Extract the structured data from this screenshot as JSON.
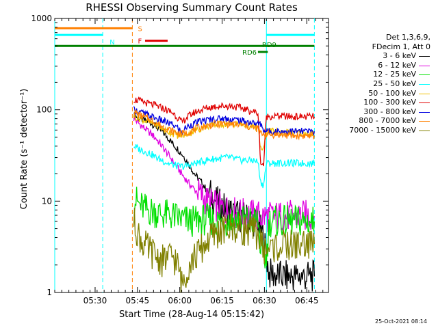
{
  "chart_data": {
    "type": "line",
    "title": "RHESSI Observing Summary Count Rates",
    "xlabel": "Start Time (28-Aug-14 05:15:42)",
    "ylabel": "Count Rate (s⁻¹ detector⁻¹)",
    "xlim_minutes": [
      0,
      97
    ],
    "ylim": [
      1,
      1000
    ],
    "yscale": "log",
    "x_ticks": [
      {
        "label": "05:30",
        "t": 14.3
      },
      {
        "label": "05:45",
        "t": 29.3
      },
      {
        "label": "06:00",
        "t": 44.3
      },
      {
        "label": "06:15",
        "t": 59.3
      },
      {
        "label": "06:30",
        "t": 74.3
      },
      {
        "label": "06:45",
        "t": 89.3
      }
    ],
    "y_ticks": [
      {
        "label": "1",
        "v": 1
      },
      {
        "label": "10",
        "v": 10
      },
      {
        "label": "100",
        "v": 100
      },
      {
        "label": "1000",
        "v": 1000
      }
    ],
    "legend_header": [
      "Det 1,3,6,9,",
      "FDecim 1, Att 0"
    ],
    "series": [
      {
        "name": "3 - 6 keV",
        "color": "#000000",
        "points": [
          [
            28,
            88
          ],
          [
            30,
            80
          ],
          [
            32,
            76
          ],
          [
            34,
            72
          ],
          [
            36,
            65
          ],
          [
            38,
            58
          ],
          [
            40,
            50
          ],
          [
            42,
            42
          ],
          [
            44,
            36
          ],
          [
            46,
            30
          ],
          [
            48,
            24
          ],
          [
            50,
            19
          ],
          [
            52,
            16
          ],
          [
            54,
            13
          ],
          [
            56,
            11
          ],
          [
            58,
            9.5
          ],
          [
            60,
            8.5
          ],
          [
            62,
            7.8
          ],
          [
            64,
            7.2
          ],
          [
            66,
            6.8
          ],
          [
            68,
            6.5
          ],
          [
            70,
            6.2
          ],
          [
            72,
            5.8
          ],
          [
            74,
            4.0
          ],
          [
            76,
            1.6
          ],
          [
            80,
            1.5
          ],
          [
            85,
            1.5
          ],
          [
            90,
            1.5
          ],
          [
            92,
            1.5
          ]
        ]
      },
      {
        "name": "6 - 12 keV",
        "color": "#e000e0",
        "points": [
          [
            28,
            80
          ],
          [
            30,
            70
          ],
          [
            32,
            62
          ],
          [
            34,
            55
          ],
          [
            36,
            48
          ],
          [
            38,
            40
          ],
          [
            40,
            33
          ],
          [
            42,
            27
          ],
          [
            44,
            22
          ],
          [
            46,
            18
          ],
          [
            48,
            15
          ],
          [
            50,
            13
          ],
          [
            52,
            11.5
          ],
          [
            54,
            10
          ],
          [
            56,
            9.2
          ],
          [
            58,
            8.6
          ],
          [
            60,
            8.2
          ],
          [
            62,
            7.8
          ],
          [
            64,
            7.5
          ],
          [
            66,
            7.3
          ],
          [
            68,
            7.1
          ],
          [
            70,
            7.0
          ],
          [
            72,
            6.9
          ],
          [
            74,
            6.8
          ],
          [
            76,
            6.8
          ],
          [
            80,
            6.8
          ],
          [
            85,
            6.9
          ],
          [
            90,
            6.9
          ],
          [
            92,
            6.9
          ]
        ]
      },
      {
        "name": "12 - 25 keV",
        "color": "#00e000",
        "points": [
          [
            28,
            11
          ],
          [
            30,
            9
          ],
          [
            32,
            8.2
          ],
          [
            34,
            7.8
          ],
          [
            36,
            7.5
          ],
          [
            38,
            7.2
          ],
          [
            40,
            7.0
          ],
          [
            42,
            6.8
          ],
          [
            44,
            6.5
          ],
          [
            46,
            6.2
          ],
          [
            48,
            6.0
          ],
          [
            50,
            6.0
          ],
          [
            52,
            6.2
          ],
          [
            54,
            6.3
          ],
          [
            56,
            6.2
          ],
          [
            58,
            6.0
          ],
          [
            60,
            6.0
          ],
          [
            62,
            6.2
          ],
          [
            64,
            6.3
          ],
          [
            66,
            6.2
          ],
          [
            68,
            6.1
          ],
          [
            70,
            6.1
          ],
          [
            72,
            6.0
          ],
          [
            73,
            3.0
          ],
          [
            74,
            2.4
          ],
          [
            75,
            2.3
          ],
          [
            76,
            6.0
          ],
          [
            80,
            6.0
          ],
          [
            85,
            6.0
          ],
          [
            90,
            6.0
          ],
          [
            92,
            6.0
          ]
        ]
      },
      {
        "name": "25 - 50 keV",
        "color": "#00ffff",
        "points": [
          [
            28,
            40
          ],
          [
            30,
            37
          ],
          [
            32,
            35
          ],
          [
            34,
            33
          ],
          [
            36,
            30
          ],
          [
            38,
            28
          ],
          [
            40,
            26
          ],
          [
            42,
            25
          ],
          [
            44,
            24
          ],
          [
            46,
            24
          ],
          [
            48,
            25
          ],
          [
            50,
            26
          ],
          [
            52,
            27
          ],
          [
            54,
            28
          ],
          [
            56,
            29
          ],
          [
            58,
            29
          ],
          [
            60,
            30
          ],
          [
            62,
            30
          ],
          [
            64,
            29
          ],
          [
            66,
            28
          ],
          [
            68,
            28
          ],
          [
            70,
            28
          ],
          [
            72,
            27
          ],
          [
            73,
            16
          ],
          [
            74,
            15
          ],
          [
            75,
            26
          ],
          [
            80,
            26
          ],
          [
            85,
            26
          ],
          [
            90,
            26
          ],
          [
            92,
            26
          ]
        ]
      },
      {
        "name": "50 - 100 keV",
        "color": "#f0c000",
        "points": [
          [
            28,
            85
          ],
          [
            30,
            80
          ],
          [
            32,
            76
          ],
          [
            34,
            72
          ],
          [
            36,
            68
          ],
          [
            38,
            62
          ],
          [
            40,
            58
          ],
          [
            42,
            55
          ],
          [
            44,
            52
          ],
          [
            46,
            53
          ],
          [
            48,
            56
          ],
          [
            50,
            60
          ],
          [
            52,
            63
          ],
          [
            54,
            66
          ],
          [
            56,
            68
          ],
          [
            58,
            69
          ],
          [
            60,
            70
          ],
          [
            62,
            70
          ],
          [
            64,
            70
          ],
          [
            66,
            69
          ],
          [
            68,
            68
          ],
          [
            70,
            66
          ],
          [
            72,
            63
          ],
          [
            73,
            38
          ],
          [
            74,
            36
          ],
          [
            75,
            58
          ],
          [
            80,
            57
          ],
          [
            85,
            56
          ],
          [
            90,
            55
          ],
          [
            92,
            55
          ]
        ]
      },
      {
        "name": "100 - 300 keV",
        "color": "#e00000",
        "points": [
          [
            28,
            130
          ],
          [
            30,
            125
          ],
          [
            32,
            120
          ],
          [
            34,
            115
          ],
          [
            36,
            110
          ],
          [
            38,
            105
          ],
          [
            40,
            98
          ],
          [
            42,
            92
          ],
          [
            44,
            80
          ],
          [
            45,
            72
          ],
          [
            46,
            78
          ],
          [
            48,
            88
          ],
          [
            50,
            95
          ],
          [
            52,
            100
          ],
          [
            54,
            105
          ],
          [
            56,
            108
          ],
          [
            58,
            110
          ],
          [
            60,
            110
          ],
          [
            62,
            110
          ],
          [
            64,
            108
          ],
          [
            66,
            105
          ],
          [
            68,
            100
          ],
          [
            70,
            96
          ],
          [
            72,
            92
          ],
          [
            73,
            26
          ],
          [
            74,
            25
          ],
          [
            75,
            85
          ],
          [
            80,
            85
          ],
          [
            85,
            84
          ],
          [
            90,
            84
          ],
          [
            92,
            84
          ]
        ]
      },
      {
        "name": "300 - 800 keV",
        "color": "#0000e0",
        "points": [
          [
            28,
            100
          ],
          [
            30,
            95
          ],
          [
            32,
            90
          ],
          [
            34,
            85
          ],
          [
            36,
            80
          ],
          [
            38,
            76
          ],
          [
            40,
            72
          ],
          [
            42,
            68
          ],
          [
            44,
            62
          ],
          [
            45,
            55
          ],
          [
            46,
            62
          ],
          [
            48,
            68
          ],
          [
            50,
            72
          ],
          [
            52,
            75
          ],
          [
            54,
            77
          ],
          [
            56,
            79
          ],
          [
            58,
            80
          ],
          [
            60,
            80
          ],
          [
            62,
            79
          ],
          [
            64,
            78
          ],
          [
            66,
            76
          ],
          [
            68,
            74
          ],
          [
            70,
            72
          ],
          [
            72,
            70
          ],
          [
            73,
            70
          ],
          [
            74,
            60
          ],
          [
            75,
            58
          ],
          [
            80,
            58
          ],
          [
            85,
            58
          ],
          [
            90,
            58
          ],
          [
            92,
            58
          ]
        ]
      },
      {
        "name": "800 - 7000 keV",
        "color": "#ff8000",
        "points": [
          [
            28,
            95
          ],
          [
            30,
            88
          ],
          [
            32,
            82
          ],
          [
            34,
            78
          ],
          [
            36,
            72
          ],
          [
            38,
            66
          ],
          [
            40,
            62
          ],
          [
            42,
            58
          ],
          [
            44,
            55
          ],
          [
            46,
            55
          ],
          [
            48,
            58
          ],
          [
            50,
            62
          ],
          [
            52,
            65
          ],
          [
            54,
            67
          ],
          [
            56,
            69
          ],
          [
            58,
            70
          ],
          [
            60,
            70
          ],
          [
            62,
            70
          ],
          [
            64,
            69
          ],
          [
            66,
            68
          ],
          [
            68,
            66
          ],
          [
            70,
            64
          ],
          [
            72,
            62
          ],
          [
            73,
            55
          ],
          [
            74,
            55
          ],
          [
            75,
            54
          ],
          [
            80,
            53
          ],
          [
            85,
            52
          ],
          [
            90,
            52
          ],
          [
            92,
            52
          ]
        ]
      },
      {
        "name": "7000 - 15000 keV",
        "color": "#808000",
        "points": [
          [
            28,
            6.0
          ],
          [
            30,
            4.0
          ],
          [
            32,
            3.2
          ],
          [
            34,
            2.8
          ],
          [
            36,
            2.5
          ],
          [
            38,
            2.2
          ],
          [
            40,
            2.4
          ],
          [
            42,
            2.5
          ],
          [
            44,
            1.8
          ],
          [
            45,
            1.2
          ],
          [
            46,
            1.5
          ],
          [
            48,
            2.2
          ],
          [
            50,
            2.5
          ],
          [
            52,
            3.0
          ],
          [
            54,
            3.6
          ],
          [
            56,
            4.2
          ],
          [
            58,
            4.6
          ],
          [
            60,
            4.8
          ],
          [
            62,
            5.0
          ],
          [
            64,
            5.0
          ],
          [
            66,
            5.0
          ],
          [
            68,
            4.8
          ],
          [
            70,
            4.6
          ],
          [
            72,
            4.4
          ],
          [
            73,
            3.5
          ],
          [
            74,
            3.0
          ],
          [
            75,
            3.0
          ],
          [
            80,
            3.2
          ],
          [
            85,
            3.3
          ],
          [
            90,
            3.4
          ],
          [
            92,
            3.4
          ]
        ]
      }
    ],
    "annotations": [
      {
        "text": "S",
        "color": "#ff8000",
        "t": 28
      },
      {
        "text": "N",
        "color": "#00ffff",
        "t": 18
      },
      {
        "text": "F",
        "color": "#e00000",
        "t": 28
      },
      {
        "text": "RD9",
        "color": "#008000",
        "t": 72
      },
      {
        "text": "RD6",
        "color": "#008000",
        "t": 65
      }
    ],
    "flag_bars": [
      {
        "name": "S",
        "color": "#ff8000",
        "t0": 0,
        "t1": 27.5,
        "v": 780
      },
      {
        "name": "N",
        "color": "#00ffff",
        "t0": 0,
        "t1": 17,
        "v": 660
      },
      {
        "name": "N",
        "color": "#00ffff",
        "t0": 75,
        "t1": 92,
        "v": 660
      },
      {
        "name": "F",
        "color": "#e00000",
        "t0": 32,
        "t1": 40,
        "v": 570
      },
      {
        "name": "RD9",
        "color": "#008000",
        "t0": 0,
        "t1": 92,
        "v": 500
      },
      {
        "name": "RD6",
        "color": "#008000",
        "t0": 72,
        "t1": 75.5,
        "v": 430
      }
    ],
    "vertical_markers": [
      {
        "color": "#00ffff",
        "t": 0,
        "style": "solid"
      },
      {
        "color": "#00ffff",
        "t": 17,
        "style": "dashed"
      },
      {
        "color": "#ff8000",
        "t": 27.5,
        "style": "dashed"
      },
      {
        "color": "#00ffff",
        "t": 75,
        "style": "solid"
      },
      {
        "color": "#00ffff",
        "t": 92,
        "style": "dashed"
      }
    ]
  },
  "footer": {
    "datestamp": "25-Oct-2021 08:14"
  }
}
